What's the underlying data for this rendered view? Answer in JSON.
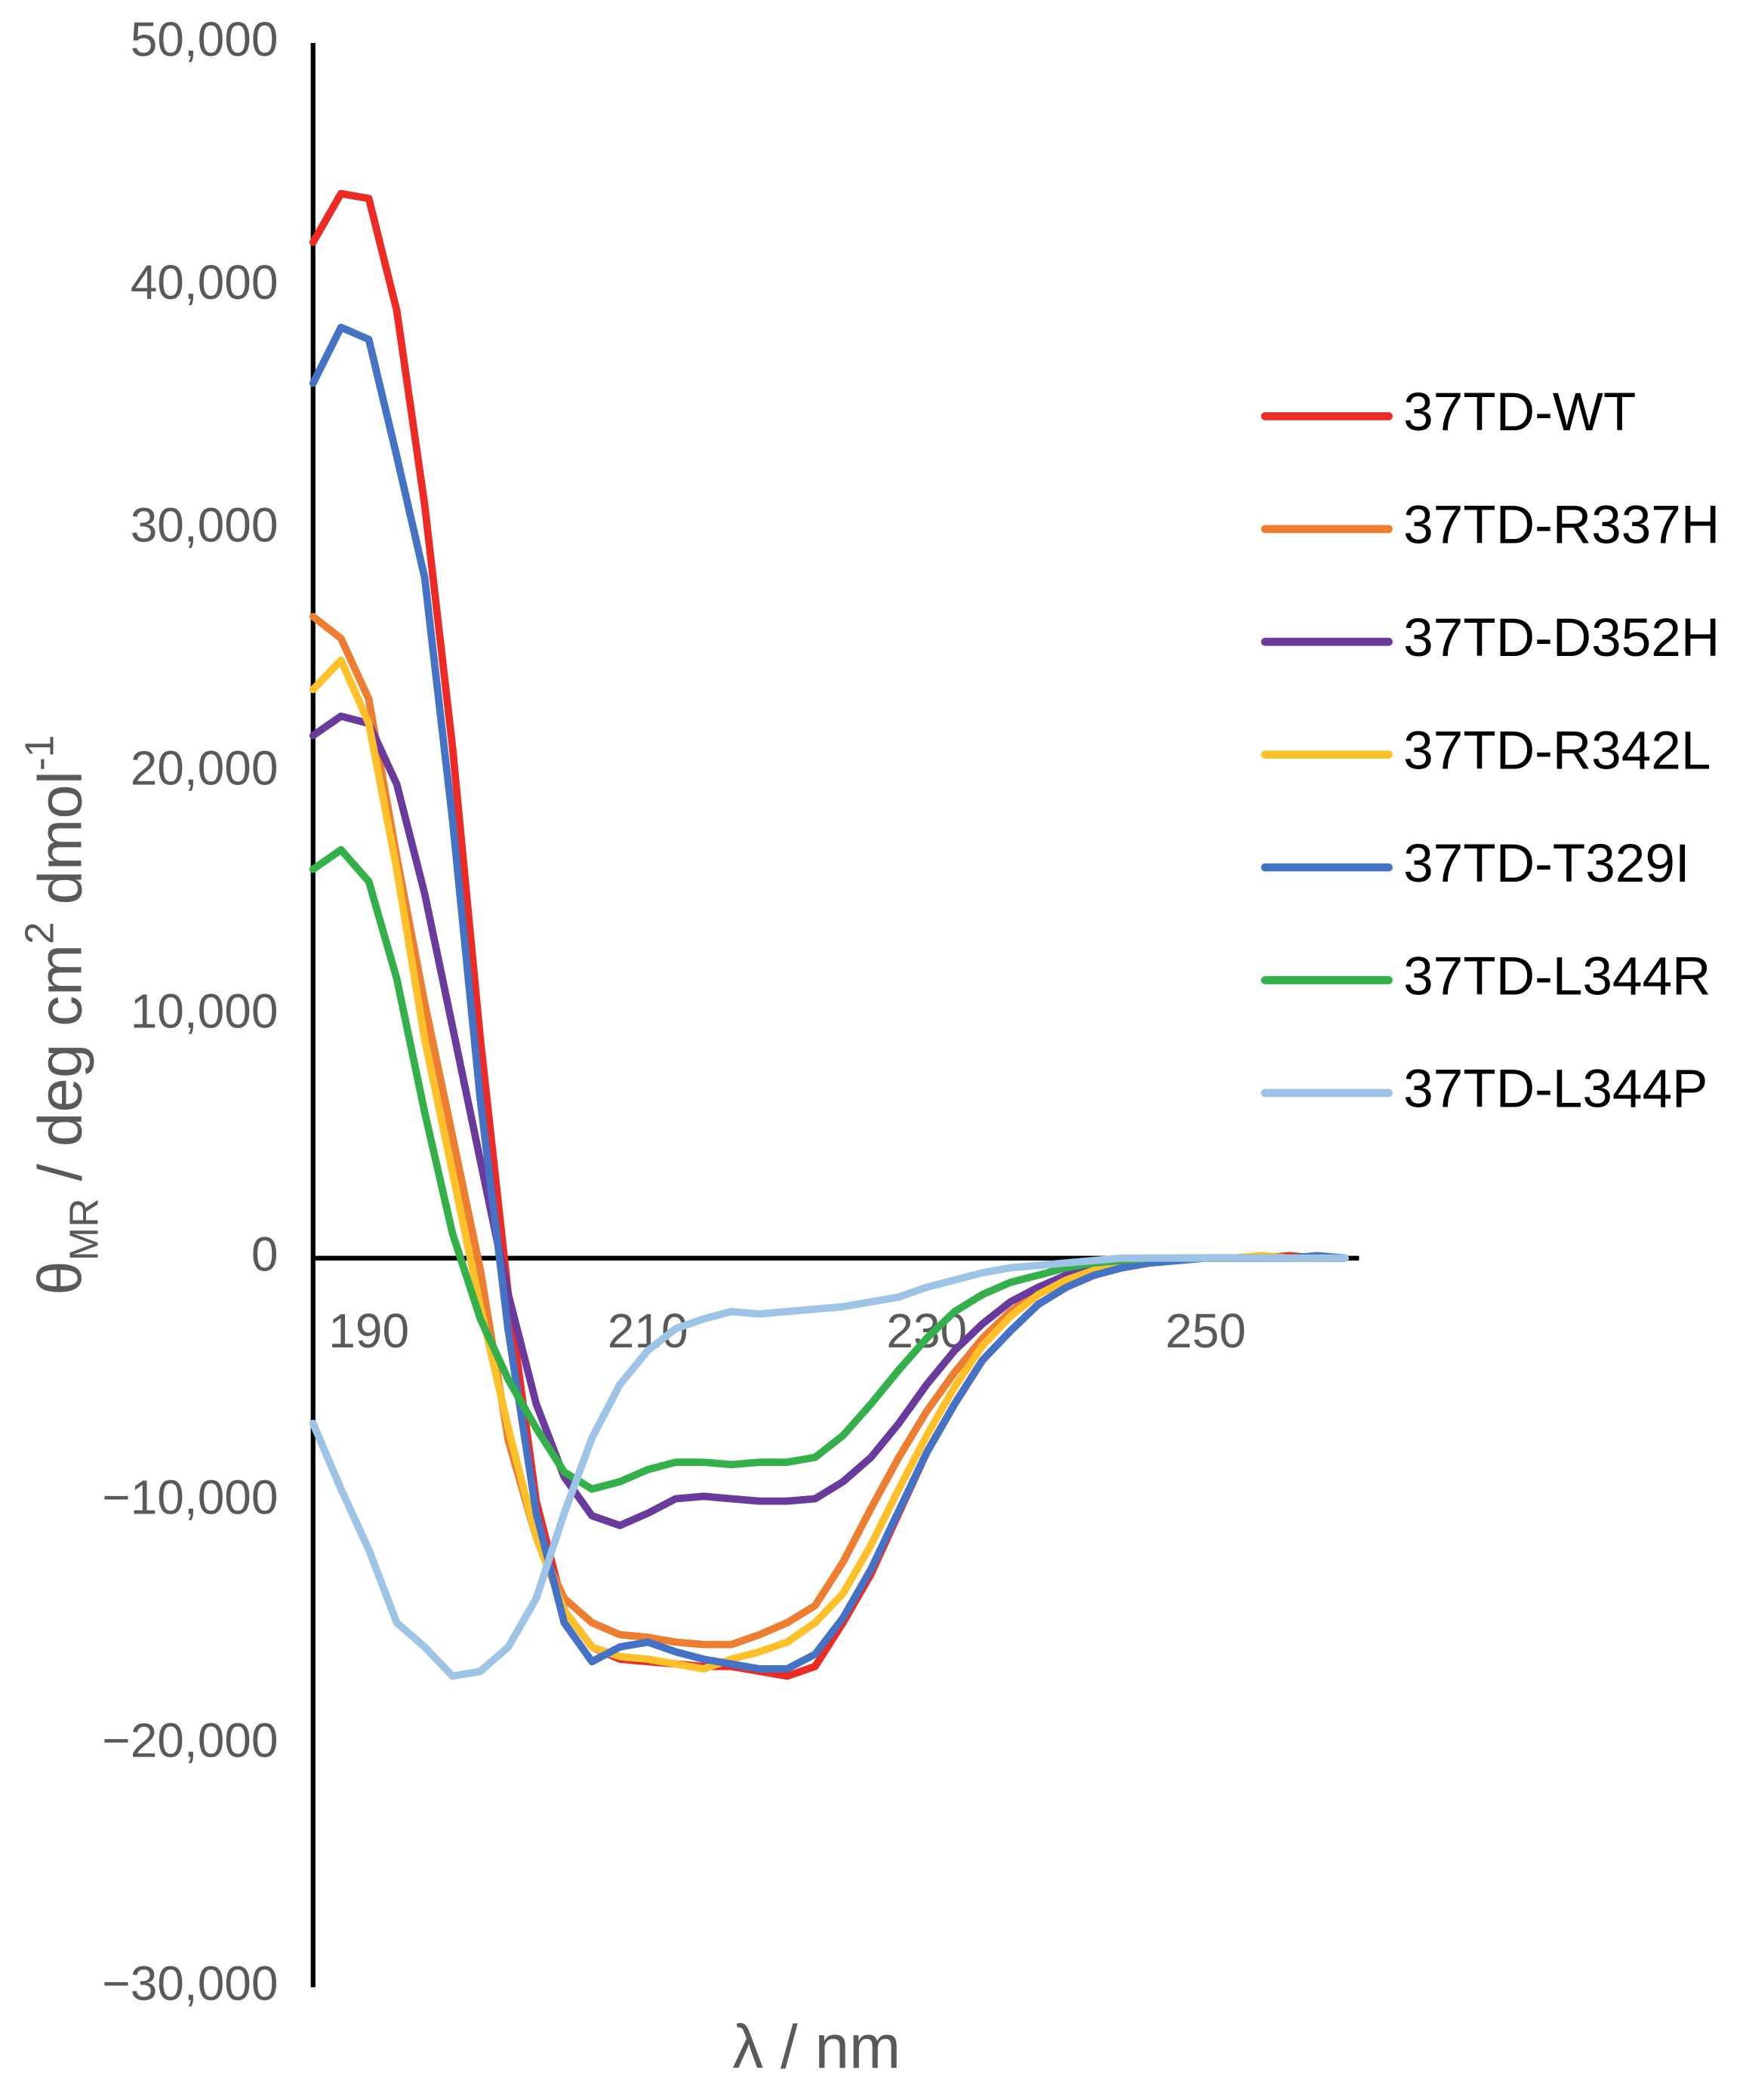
{
  "chart_data": {
    "type": "line",
    "xlabel": "λ / nm",
    "ylabel": [
      {
        "text": "θ"
      },
      {
        "text": "MR",
        "shift": "sub"
      },
      {
        "text": " / deg cm"
      },
      {
        "text": "2",
        "shift": "super"
      },
      {
        "text": " dmol"
      },
      {
        "text": "-1",
        "shift": "super"
      }
    ],
    "xlim": [
      186,
      261
    ],
    "ylim": [
      -30000,
      50000
    ],
    "xticks": [
      190,
      210,
      230,
      250
    ],
    "yticks": [
      {
        "value": 50000,
        "label": "50,000"
      },
      {
        "value": 40000,
        "label": "40,000"
      },
      {
        "value": 30000,
        "label": "30,000"
      },
      {
        "value": 20000,
        "label": "20,000"
      },
      {
        "value": 10000,
        "label": "10,000"
      },
      0,
      {
        "value": -10000,
        "label": "−10,000"
      },
      {
        "value": -20000,
        "label": "−20,000"
      },
      {
        "value": -30000,
        "label": "−30,000"
      }
    ],
    "grid": false,
    "legend": "right",
    "x": [
      186,
      188,
      190,
      192,
      194,
      196,
      198,
      200,
      202,
      204,
      206,
      208,
      210,
      212,
      214,
      216,
      218,
      220,
      222,
      224,
      226,
      228,
      230,
      232,
      234,
      236,
      238,
      240,
      242,
      244,
      246,
      248,
      250,
      252,
      254,
      256,
      258,
      260
    ],
    "series": [
      {
        "name": "37TD-WT",
        "color": "#ee2a24",
        "values": [
          41800,
          43800,
          43600,
          39000,
          31000,
          21000,
          9000,
          -1500,
          -10000,
          -14500,
          -16000,
          -16500,
          -16600,
          -16700,
          -16800,
          -16800,
          -17000,
          -17200,
          -16800,
          -15000,
          -13000,
          -10500,
          -8000,
          -6000,
          -4200,
          -3000,
          -1900,
          -1200,
          -700,
          -400,
          -200,
          -100,
          0,
          0,
          0,
          100,
          0,
          0
        ]
      },
      {
        "name": "37TD-R337H",
        "color": "#ed7d31",
        "values": [
          26400,
          25500,
          23000,
          16500,
          10500,
          5000,
          -500,
          -7500,
          -11500,
          -14000,
          -15000,
          -15500,
          -15600,
          -15800,
          -15900,
          -15900,
          -15500,
          -15000,
          -14300,
          -12500,
          -10300,
          -8200,
          -6300,
          -4700,
          -3300,
          -2200,
          -1400,
          -800,
          -500,
          -300,
          -100,
          0,
          0,
          0,
          100,
          0,
          0,
          0
        ]
      },
      {
        "name": "37TD-D352H",
        "color": "#6a3a9c",
        "values": [
          21500,
          22300,
          22000,
          19500,
          15000,
          9500,
          4000,
          -1500,
          -6000,
          -9000,
          -10600,
          -11000,
          -10500,
          -9900,
          -9800,
          -9900,
          -10000,
          -10000,
          -9900,
          -9200,
          -8200,
          -6800,
          -5200,
          -3800,
          -2700,
          -1800,
          -1200,
          -700,
          -400,
          -200,
          -100,
          0,
          0,
          0,
          0,
          0,
          0,
          0
        ]
      },
      {
        "name": "37TD-R342L",
        "color": "#ffc02a",
        "values": [
          23400,
          24600,
          22000,
          16000,
          9000,
          3500,
          -2000,
          -7000,
          -11500,
          -14500,
          -16000,
          -16400,
          -16500,
          -16700,
          -16900,
          -16500,
          -16200,
          -15800,
          -15000,
          -13800,
          -11800,
          -9500,
          -7300,
          -5300,
          -3600,
          -2400,
          -1500,
          -900,
          -500,
          -200,
          -100,
          0,
          0,
          0,
          100,
          0,
          0,
          0
        ]
      },
      {
        "name": "37TD-T329I",
        "color": "#4472c4",
        "values": [
          36000,
          38300,
          37800,
          33000,
          28000,
          18000,
          6500,
          -3000,
          -10500,
          -15000,
          -16600,
          -16000,
          -15800,
          -16200,
          -16500,
          -16700,
          -16900,
          -16900,
          -16300,
          -14800,
          -12800,
          -10400,
          -8000,
          -6000,
          -4200,
          -3000,
          -1900,
          -1200,
          -700,
          -400,
          -200,
          -100,
          0,
          0,
          0,
          0,
          100,
          0
        ]
      },
      {
        "name": "37TD-L344R",
        "color": "#33b04a",
        "values": [
          16000,
          16800,
          15500,
          11500,
          6000,
          1000,
          -2500,
          -5000,
          -7000,
          -8800,
          -9500,
          -9200,
          -8700,
          -8400,
          -8400,
          -8500,
          -8400,
          -8400,
          -8200,
          -7300,
          -6000,
          -4600,
          -3300,
          -2200,
          -1500,
          -1000,
          -700,
          -400,
          -200,
          -100,
          0,
          0,
          0,
          0,
          0,
          0,
          0,
          0
        ]
      },
      {
        "name": "37TD-L344P",
        "color": "#9dc3e6",
        "values": [
          -6800,
          -9500,
          -12000,
          -15000,
          -16000,
          -17200,
          -17000,
          -16000,
          -14000,
          -10500,
          -7400,
          -5200,
          -3800,
          -2900,
          -2500,
          -2200,
          -2300,
          -2200,
          -2100,
          -2000,
          -1800,
          -1600,
          -1200,
          -900,
          -600,
          -400,
          -300,
          -200,
          -100,
          0,
          0,
          0,
          0,
          0,
          0,
          0,
          0,
          0
        ]
      }
    ]
  }
}
